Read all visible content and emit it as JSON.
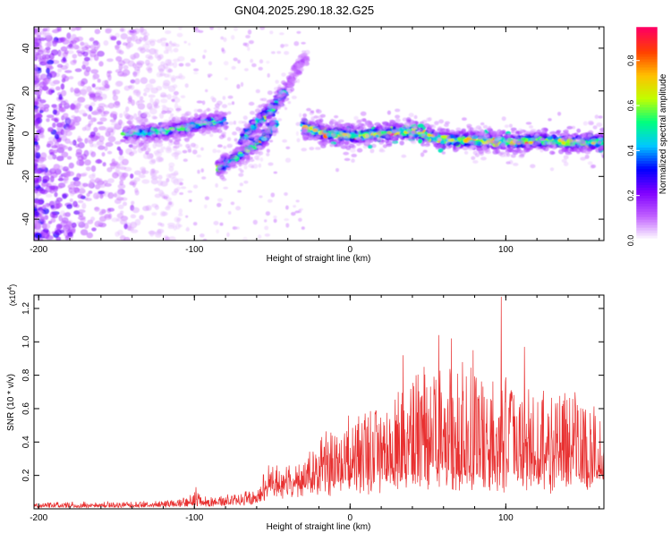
{
  "title": "GN04.2025.290.18.32.G25",
  "chart_data": [
    {
      "type": "heatmap",
      "name": "spectrogram",
      "xlabel": "Height of straight line (km)",
      "ylabel": "Frequency (Hz)",
      "xlim": [
        -203,
        163
      ],
      "ylim": [
        -50,
        50
      ],
      "x_ticks": [
        -200,
        -100,
        0,
        100
      ],
      "y_ticks": [
        -40,
        -20,
        0,
        20,
        40
      ],
      "colorbar": {
        "label": "Normalized spectral amplitude",
        "range": [
          0,
          0.95
        ],
        "ticks": [
          0.0,
          0.2,
          0.4,
          0.6,
          0.8
        ],
        "colors": [
          "#ffffff",
          "#c060ff",
          "#8000ff",
          "#0000ff",
          "#00c8ff",
          "#00ff80",
          "#c0ff00",
          "#ffc000",
          "#ff4000",
          "#ff0060"
        ]
      },
      "ridges": [
        {
          "name": "main-track",
          "points": [
            [
              -145,
              0
            ],
            [
              -120,
              1
            ],
            [
              -105,
              3
            ],
            [
              -95,
              5
            ],
            [
              -80,
              6
            ]
          ]
        },
        {
          "name": "lower-branch",
          "points": [
            [
              -85,
              -16
            ],
            [
              -75,
              -12
            ],
            [
              -65,
              -7
            ],
            [
              -55,
              -2
            ],
            [
              -48,
              5
            ]
          ]
        },
        {
          "name": "upper-branch",
          "points": [
            [
              -70,
              -3
            ],
            [
              -60,
              5
            ],
            [
              -50,
              12
            ],
            [
              -42,
              20
            ]
          ]
        },
        {
          "name": "faint-extension",
          "points": [
            [
              -40,
              22
            ],
            [
              -35,
              30
            ],
            [
              -28,
              36
            ]
          ]
        },
        {
          "name": "stable-track",
          "points": [
            [
              -30,
              3
            ],
            [
              -15,
              0
            ],
            [
              0,
              -1
            ],
            [
              20,
              0
            ],
            [
              40,
              1
            ],
            [
              60,
              -3
            ],
            [
              80,
              -3
            ],
            [
              100,
              -4
            ],
            [
              120,
              -3
            ],
            [
              140,
              -4
            ],
            [
              163,
              -4
            ]
          ]
        }
      ]
    },
    {
      "type": "line",
      "name": "snr",
      "xlabel": "Height of straight line (km)",
      "ylabel": "SNR (10 * v/v)",
      "y_multiplier": "(x10",
      "y_multiplier_exp": "4",
      "y_multiplier_close": ")",
      "xlim": [
        -203,
        163
      ],
      "ylim": [
        0,
        1.28
      ],
      "x_ticks": [
        -200,
        -100,
        0,
        100
      ],
      "y_ticks": [
        0.2,
        0.4,
        0.6,
        0.8,
        1.0,
        1.2
      ],
      "color": "#e83030",
      "envelope": [
        {
          "x": -203,
          "base": 0.01,
          "amp": 0.03
        },
        {
          "x": -120,
          "base": 0.015,
          "amp": 0.035
        },
        {
          "x": -105,
          "base": 0.02,
          "amp": 0.05
        },
        {
          "x": -100,
          "base": 0.03,
          "amp": 0.08
        },
        {
          "x": -90,
          "base": 0.02,
          "amp": 0.05
        },
        {
          "x": -60,
          "base": 0.04,
          "amp": 0.08
        },
        {
          "x": -52,
          "base": 0.12,
          "amp": 0.16
        },
        {
          "x": -35,
          "base": 0.12,
          "amp": 0.14
        },
        {
          "x": -20,
          "base": 0.14,
          "amp": 0.3
        },
        {
          "x": 0,
          "base": 0.16,
          "amp": 0.45
        },
        {
          "x": 25,
          "base": 0.18,
          "amp": 0.55
        },
        {
          "x": 45,
          "base": 0.2,
          "amp": 0.7
        },
        {
          "x": 75,
          "base": 0.2,
          "amp": 0.75
        },
        {
          "x": 110,
          "base": 0.18,
          "amp": 0.58
        },
        {
          "x": 140,
          "base": 0.18,
          "amp": 0.55
        },
        {
          "x": 163,
          "base": 0.2,
          "amp": 0.45
        }
      ],
      "peaks": [
        {
          "x": 97,
          "y": 1.27
        },
        {
          "x": 57,
          "y": 1.04
        },
        {
          "x": 65,
          "y": 1.02
        },
        {
          "x": 112,
          "y": 0.97
        },
        {
          "x": 34,
          "y": 0.92
        },
        {
          "x": 79,
          "y": 0.95
        },
        {
          "x": -47,
          "y": 0.26
        },
        {
          "x": -99,
          "y": 0.13
        }
      ]
    }
  ]
}
